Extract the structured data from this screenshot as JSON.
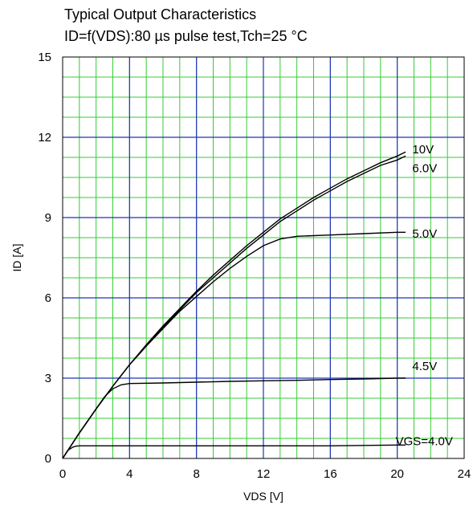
{
  "chart_data": {
    "type": "line",
    "title": "Typical Output Characteristics",
    "subtitle": "ID=f(VDS):80 µs pulse test,Tch=25 °C",
    "xlabel": "VDS [V]",
    "ylabel": "ID [A]",
    "xlim": [
      0,
      24
    ],
    "ylim": [
      0,
      15
    ],
    "x_ticks": [
      "0",
      "4",
      "8",
      "12",
      "16",
      "20",
      "24"
    ],
    "y_ticks": [
      "0",
      "3",
      "6",
      "9",
      "12",
      "15"
    ],
    "grid": true,
    "colors": {
      "major_grid": "#2233bb",
      "minor_grid": "#33cc33",
      "curve": "#000000"
    },
    "series": [
      {
        "name": "10V",
        "x": [
          0,
          1,
          2,
          3,
          4,
          5,
          6,
          7,
          8,
          9,
          10,
          11,
          12,
          13,
          14,
          15,
          16,
          17,
          18,
          19,
          20,
          20.5
        ],
        "y": [
          0,
          0.95,
          1.85,
          2.7,
          3.5,
          4.25,
          4.95,
          5.6,
          6.25,
          6.85,
          7.4,
          7.95,
          8.45,
          8.95,
          9.35,
          9.75,
          10.1,
          10.45,
          10.75,
          11.05,
          11.3,
          11.45
        ]
      },
      {
        "name": "6.0V",
        "x": [
          0,
          1,
          2,
          3,
          4,
          5,
          6,
          7,
          8,
          9,
          10,
          11,
          12,
          13,
          14,
          15,
          16,
          17,
          18,
          19,
          20,
          20.5
        ],
        "y": [
          0,
          0.95,
          1.85,
          2.7,
          3.5,
          4.2,
          4.9,
          5.55,
          6.2,
          6.75,
          7.3,
          7.85,
          8.35,
          8.85,
          9.25,
          9.65,
          10.0,
          10.35,
          10.65,
          10.95,
          11.15,
          11.3
        ]
      },
      {
        "name": "5.0V",
        "x": [
          0,
          1,
          2,
          3,
          4,
          5,
          6,
          7,
          8,
          9,
          10,
          11,
          12,
          13,
          14,
          16,
          18,
          20,
          20.5
        ],
        "y": [
          0,
          0.95,
          1.85,
          2.7,
          3.5,
          4.2,
          4.85,
          5.5,
          6.05,
          6.6,
          7.1,
          7.55,
          7.95,
          8.2,
          8.3,
          8.35,
          8.4,
          8.45,
          8.45
        ]
      },
      {
        "name": "4.5V",
        "x": [
          0,
          1,
          2,
          2.5,
          3,
          3.5,
          4,
          6,
          8,
          10,
          12,
          14,
          16,
          18,
          20,
          20.5
        ],
        "y": [
          0,
          0.95,
          1.85,
          2.3,
          2.6,
          2.75,
          2.8,
          2.82,
          2.85,
          2.88,
          2.9,
          2.92,
          2.95,
          2.97,
          3.0,
          3.0
        ]
      },
      {
        "name": "VGS=4.0V",
        "x": [
          0,
          0.3,
          0.6,
          0.8,
          1,
          4,
          8,
          12,
          16,
          20,
          20.5
        ],
        "y": [
          0,
          0.3,
          0.42,
          0.46,
          0.47,
          0.47,
          0.47,
          0.47,
          0.47,
          0.5,
          0.5
        ]
      }
    ],
    "curve_labels": [
      {
        "text": "10V",
        "x": 20.9,
        "y": 11.55
      },
      {
        "text": "6.0V",
        "x": 20.9,
        "y": 10.85
      },
      {
        "text": "5.0V",
        "x": 20.9,
        "y": 8.4
      },
      {
        "text": "4.5V",
        "x": 20.9,
        "y": 3.45
      },
      {
        "text": "VGS=4.0V",
        "x": 19.9,
        "y": 0.65
      }
    ]
  }
}
